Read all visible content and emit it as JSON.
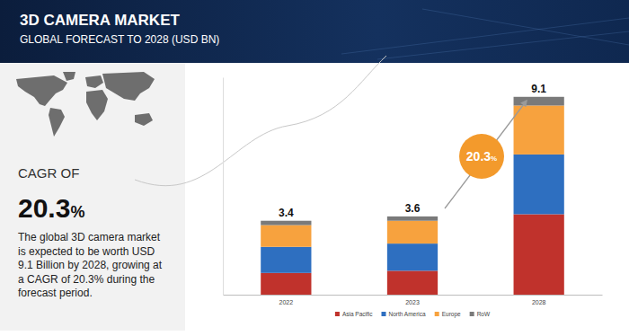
{
  "chart_data": {
    "type": "bar",
    "title": "3D CAMERA MARKET",
    "subtitle": "GLOBAL FORECAST TO 2028 (USD BN)",
    "categories": [
      "2022",
      "2023",
      "2028"
    ],
    "series": [
      {
        "name": "Asia Pacific",
        "color": "#c0322c",
        "values": [
          1.0,
          1.1,
          3.7
        ]
      },
      {
        "name": "North America",
        "color": "#2e6fc0",
        "values": [
          1.2,
          1.25,
          2.75
        ]
      },
      {
        "name": "Europe",
        "color": "#f7a23e",
        "values": [
          1.0,
          1.05,
          2.25
        ]
      },
      {
        "name": "RoW",
        "color": "#7a7a7a",
        "values": [
          0.2,
          0.2,
          0.4
        ]
      }
    ],
    "totals": [
      3.4,
      3.6,
      9.1
    ],
    "stacked": true,
    "legend": "bottom",
    "tick_labels": "x",
    "grid": false,
    "data_labels": false,
    "ylim": [
      0,
      10
    ],
    "annotations": [
      {
        "text": "CAGR OF"
      },
      {
        "text": "20.3%"
      },
      {
        "lines": [
          "The global 3D camera market",
          "is expected to be worth USD",
          "9.1 Billion by 2028, growing at",
          "a CAGR of 20.3% during the",
          "forecast period."
        ]
      },
      {
        "text": "20.3%"
      }
    ]
  }
}
